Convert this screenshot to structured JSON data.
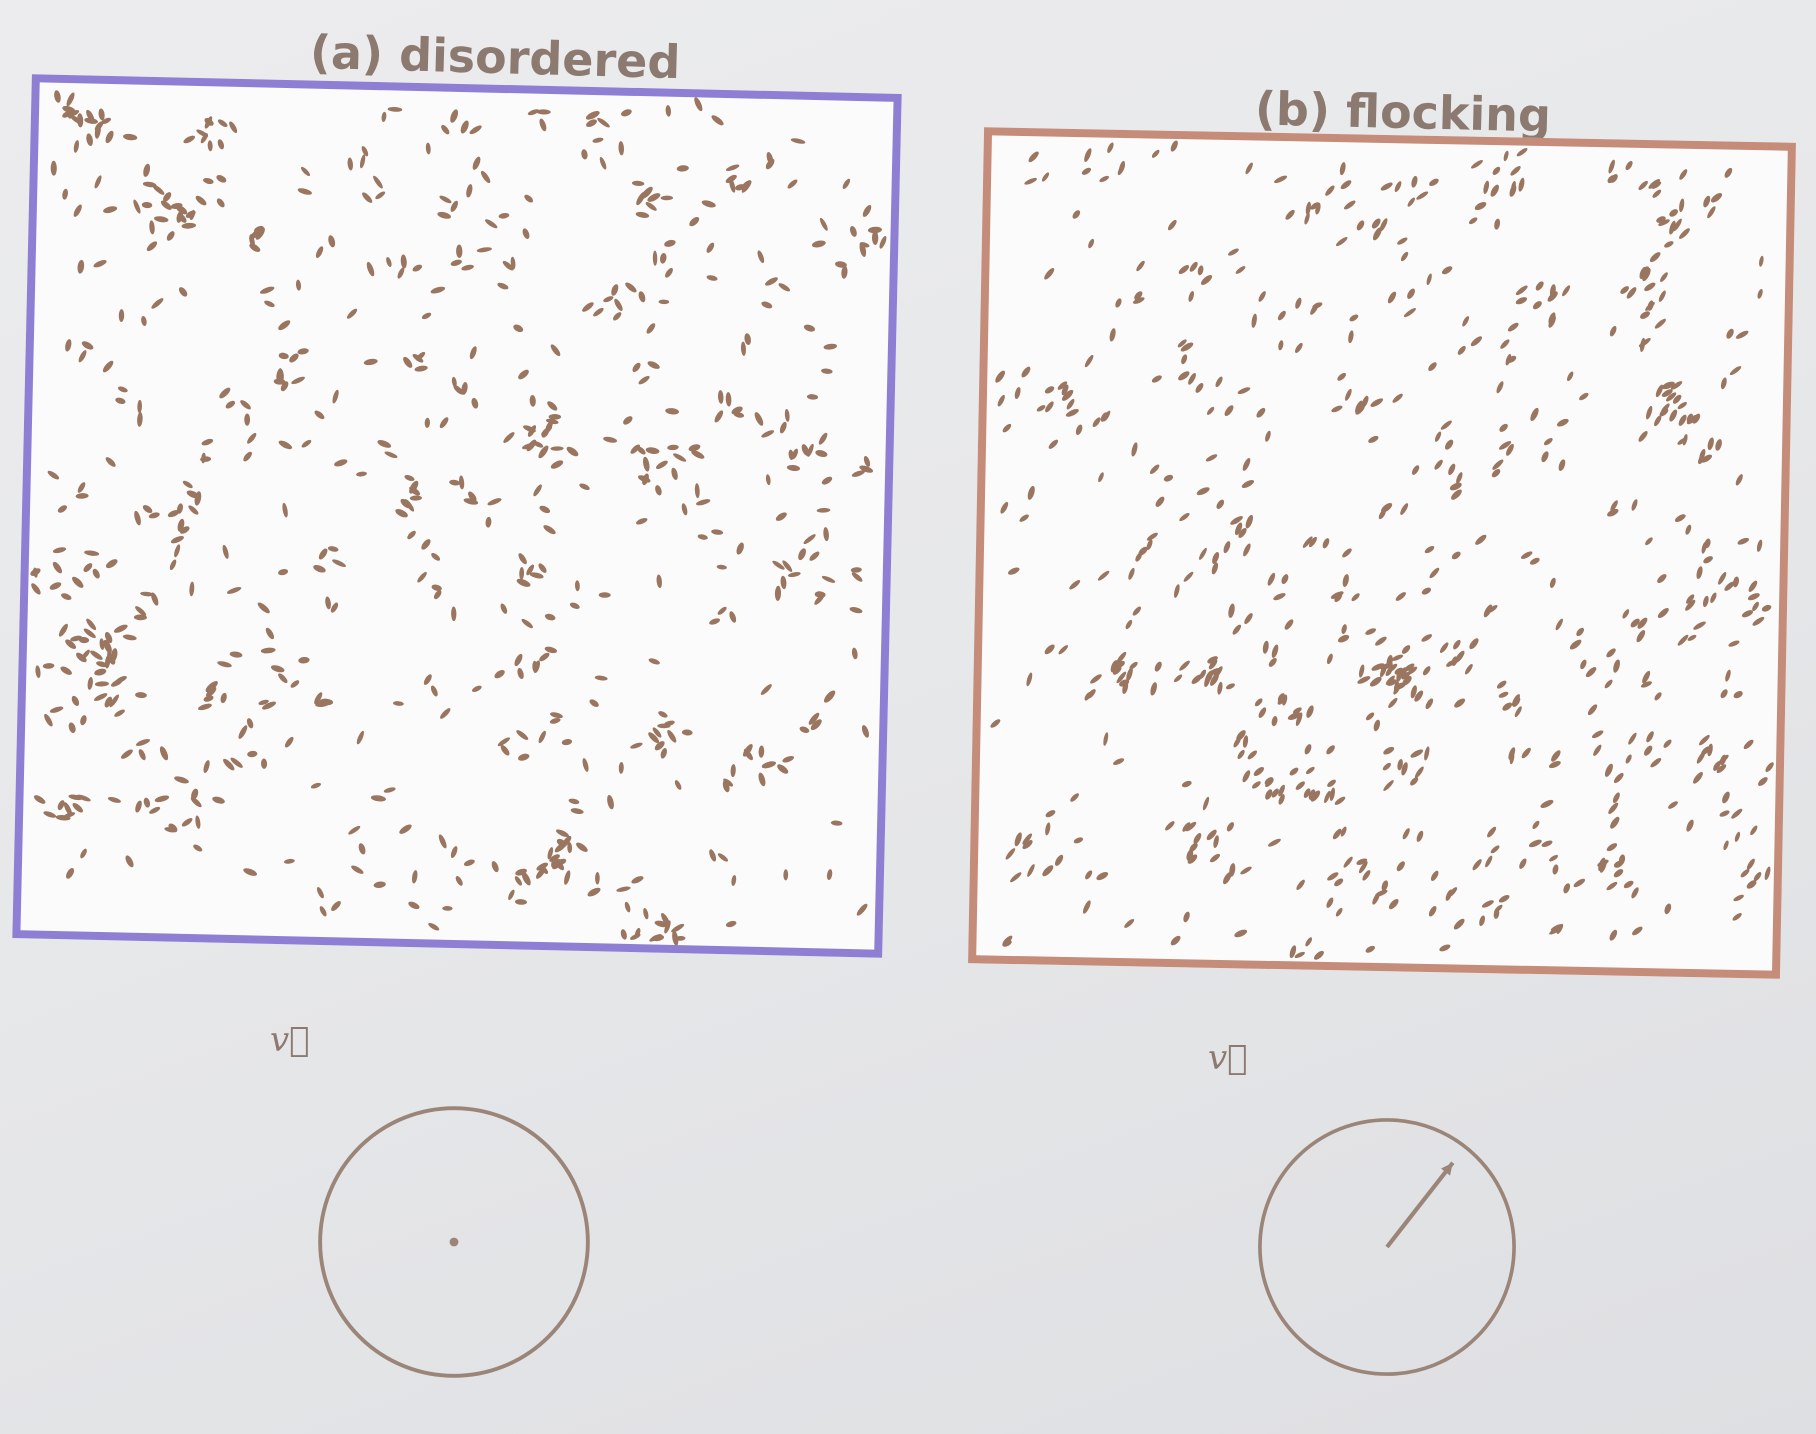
{
  "panels": [
    {
      "title": "(a) disordered",
      "frame_color": "#8f7fd4",
      "particle_color": "#9a7560",
      "state": "disordered",
      "velocity_label": "v⃗",
      "mean_velocity": {
        "magnitude": 0.0,
        "angle_deg": 0
      }
    },
    {
      "title": "(b) flocking",
      "frame_color": "#c58c7a",
      "particle_color": "#9a7560",
      "state": "flocking",
      "velocity_label": "v⃗",
      "mean_velocity": {
        "magnitude": 0.85,
        "angle_deg": 52
      }
    }
  ],
  "circle_color": "#9a8578"
}
